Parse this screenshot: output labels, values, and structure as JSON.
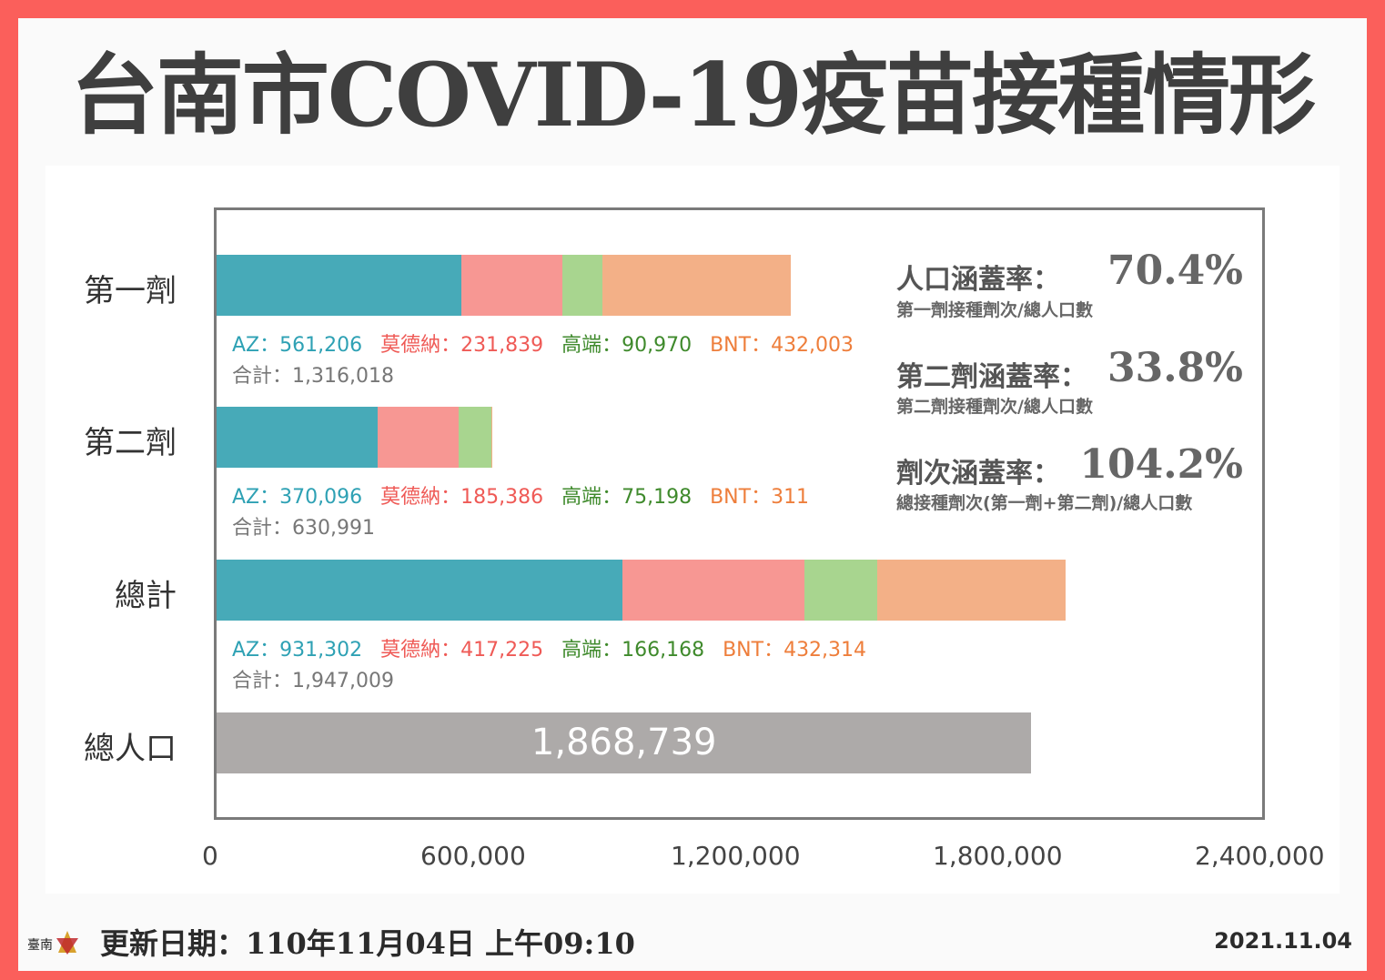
{
  "title": "台南市COVID-19疫苗接種情形",
  "colors": {
    "AZ": "#47aab8",
    "莫德納": "#f79793",
    "高端": "#a8d58f",
    "BNT": "#f3b087",
    "population": "#adaaa9",
    "AZ_text": "#2ea1b4",
    "莫德納_text": "#ef5a56",
    "高端_text": "#3f8a2c",
    "BNT_text": "#ee7e3b"
  },
  "chart_data": {
    "type": "bar",
    "orientation": "horizontal",
    "stacked": true,
    "categories": [
      "第一劑",
      "第二劑",
      "總計",
      "總人口"
    ],
    "series": [
      {
        "name": "AZ",
        "values": [
          561206,
          370096,
          931302,
          null
        ]
      },
      {
        "name": "莫德納",
        "values": [
          231839,
          185386,
          417225,
          null
        ]
      },
      {
        "name": "高端",
        "values": [
          90970,
          75198,
          166168,
          null
        ]
      },
      {
        "name": "BNT",
        "values": [
          432003,
          311,
          432314,
          null
        ]
      }
    ],
    "totals": [
      1316018,
      630991,
      1947009
    ],
    "population": 1868739,
    "xlim": [
      0,
      2400000
    ],
    "xticks": [
      "0",
      "600,000",
      "1,200,000",
      "1,800,000",
      "2,400,000"
    ],
    "grid": false
  },
  "labels": {
    "dose1": {
      "series_line": [
        "AZ：561,206",
        "莫德納：231,839",
        "高端：90,970",
        "BNT：432,003"
      ],
      "total": "合計：1,316,018"
    },
    "dose2": {
      "series_line": [
        "AZ：370,096",
        "莫德納：185,386",
        "高端：75,198",
        "BNT：311"
      ],
      "total": "合計：630,991"
    },
    "overall": {
      "series_line": [
        "AZ：931,302",
        "莫德納：417,225",
        "高端：166,168",
        "BNT：432,314"
      ],
      "total": "合計：1,947,009"
    },
    "population_value": "1,868,739"
  },
  "stats": [
    {
      "title": "人口涵蓋率：",
      "value": "70.4%",
      "sub": "第一劑接種劑次/總人口數"
    },
    {
      "title": "第二劑涵蓋率：",
      "value": "33.8%",
      "sub": "第二劑接種劑次/總人口數"
    },
    {
      "title": "劑次涵蓋率：",
      "value": "104.2%",
      "sub": "總接種劑次(第一劑+第二劑)/總人口數"
    }
  ],
  "footer": {
    "update": "更新日期：110年11月04日  上午09:10",
    "stamp": "2021.11.04"
  }
}
